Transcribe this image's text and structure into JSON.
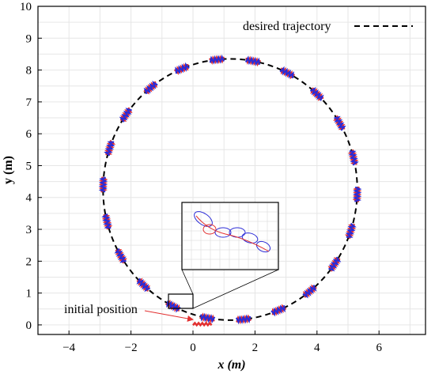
{
  "chart_data": {
    "type": "line",
    "xlabel": "x (m)",
    "ylabel": "y (m)",
    "xlim": [
      -5,
      7.5
    ],
    "ylim": [
      -0.3,
      10
    ],
    "xticks": [
      "−4",
      "−2",
      "0",
      "2",
      "4",
      "6"
    ],
    "yticks": [
      "0",
      "1",
      "2",
      "3",
      "4",
      "5",
      "6",
      "7",
      "8",
      "9",
      "10"
    ],
    "grid": true,
    "legend": {
      "position": "top-right",
      "label": "desired trajectory"
    },
    "series": [
      {
        "name": "desired trajectory",
        "style": "dashed",
        "color": "#000000",
        "shape": "circle",
        "center": [
          1.2,
          4.25
        ],
        "radius": 4.1
      }
    ],
    "robot_trail_colors": {
      "primary": "#2b2bd6",
      "secondary": "#e23030"
    },
    "annotation": {
      "text": "initial position",
      "arrow_color": "#e23030",
      "point": [
        -0.05,
        0.02
      ]
    }
  }
}
